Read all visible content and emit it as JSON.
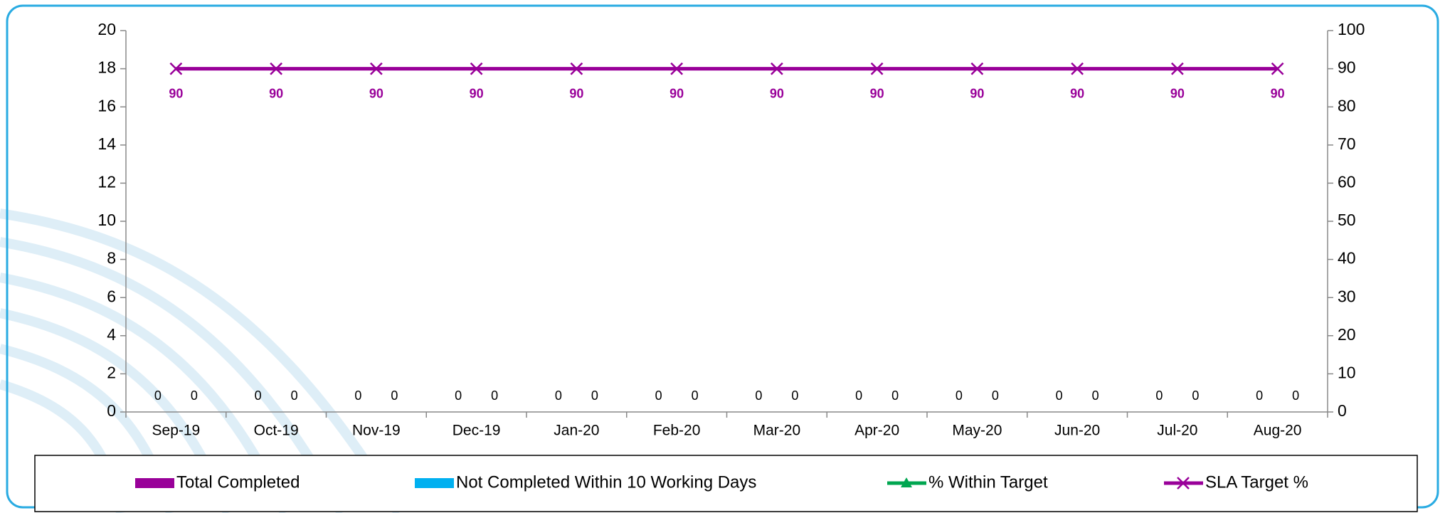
{
  "chart_data": {
    "type": "bar",
    "categories": [
      "Sep-19",
      "Oct-19",
      "Nov-19",
      "Dec-19",
      "Jan-20",
      "Feb-20",
      "Mar-20",
      "Apr-20",
      "May-20",
      "Jun-20",
      "Jul-20",
      "Aug-20"
    ],
    "series": [
      {
        "name": "Total Completed",
        "type": "bar",
        "color": "#990099",
        "values": [
          0,
          0,
          0,
          0,
          0,
          0,
          0,
          0,
          0,
          0,
          0,
          0
        ]
      },
      {
        "name": "Not Completed Within 10 Working Days",
        "type": "bar",
        "color": "#00b0f0",
        "values": [
          0,
          0,
          0,
          0,
          0,
          0,
          0,
          0,
          0,
          0,
          0,
          0
        ]
      },
      {
        "name": "% Within Target",
        "type": "line",
        "marker": "triangle",
        "axis": "y2",
        "color": "#00a650",
        "values": [
          null,
          null,
          null,
          null,
          null,
          null,
          null,
          null,
          null,
          null,
          null,
          null
        ]
      },
      {
        "name": "SLA Target %",
        "type": "line",
        "marker": "x",
        "axis": "y2",
        "color": "#990099",
        "values": [
          90,
          90,
          90,
          90,
          90,
          90,
          90,
          90,
          90,
          90,
          90,
          90
        ]
      }
    ],
    "ylim": [
      0,
      20
    ],
    "yticks": [
      0,
      2,
      4,
      6,
      8,
      10,
      12,
      14,
      16,
      18,
      20
    ],
    "y2lim": [
      0,
      100
    ],
    "y2ticks": [
      0,
      10,
      20,
      30,
      40,
      50,
      60,
      70,
      80,
      90,
      100
    ],
    "legend": "bottom"
  }
}
